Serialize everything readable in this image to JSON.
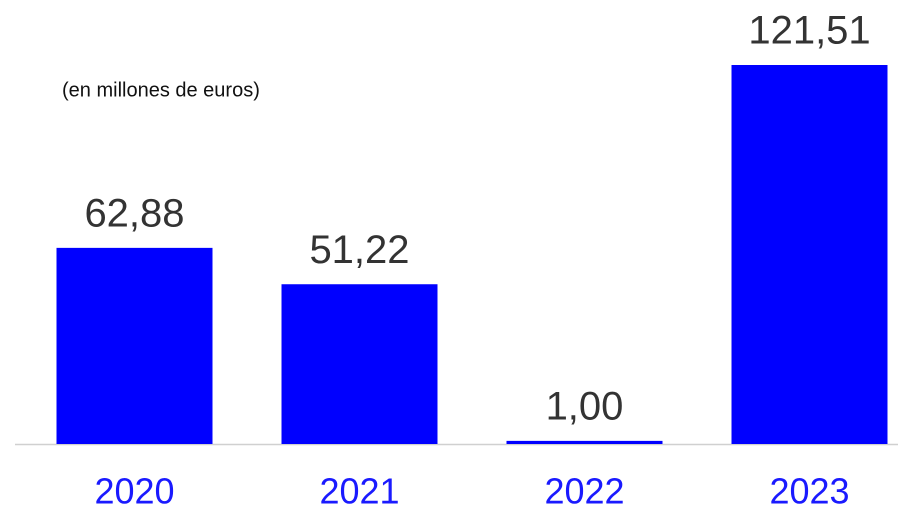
{
  "chart_data": {
    "type": "bar",
    "subtitle": "(en millones de euros)",
    "categories": [
      "2020",
      "2021",
      "2022",
      "2023"
    ],
    "values": [
      62.88,
      51.22,
      1.0,
      121.51
    ],
    "value_labels": [
      "62,88",
      "51,22",
      "1,00",
      "121,51"
    ],
    "color": "#0000ff"
  }
}
